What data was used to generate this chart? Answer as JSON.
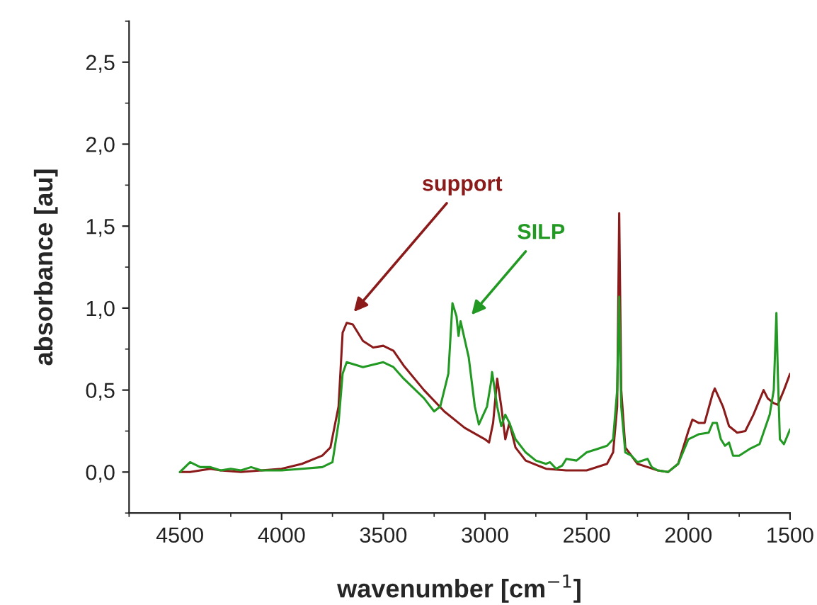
{
  "chart_data": {
    "type": "line",
    "xlabel": "wavenumber [cm$^{−1}$]",
    "ylabel": "absorbance [au]",
    "xlim": [
      4750,
      1500
    ],
    "xticks": [
      4500,
      4000,
      3500,
      3000,
      2500,
      2000,
      1500
    ],
    "ylim": [
      -0.25,
      2.75
    ],
    "yticks": [
      {
        "value": 0,
        "label": "0,0"
      },
      {
        "value": 0.5,
        "label": "0,5"
      },
      {
        "value": 1.0,
        "label": "1,0"
      },
      {
        "value": 1.5,
        "label": "1,5"
      },
      {
        "value": 2.0,
        "label": "2,0"
      },
      {
        "value": 2.5,
        "label": "2,5"
      }
    ],
    "grid": false,
    "legend": false,
    "marker": "none",
    "line_style": "solid",
    "series": [
      {
        "color": "#8b1a1a",
        "x": [
          4500,
          4450,
          4350,
          4300,
          4200,
          4100,
          4000,
          3900,
          3800,
          3760,
          3720,
          3700,
          3680,
          3650,
          3600,
          3550,
          3500,
          3450,
          3400,
          3300,
          3200,
          3100,
          3000,
          2980,
          2960,
          2940,
          2920,
          2900,
          2880,
          2850,
          2800,
          2700,
          2600,
          2500,
          2400,
          2370,
          2350,
          2340,
          2330,
          2310,
          2250,
          2200,
          2150,
          2100,
          2050,
          2000,
          1980,
          1950,
          1920,
          1880,
          1870,
          1830,
          1800,
          1760,
          1720,
          1680,
          1630,
          1610,
          1580,
          1560,
          1530,
          1500
        ],
        "values": [
          0.0,
          0.0,
          0.02,
          0.01,
          0.0,
          0.01,
          0.02,
          0.05,
          0.1,
          0.15,
          0.4,
          0.85,
          0.91,
          0.9,
          0.8,
          0.76,
          0.77,
          0.74,
          0.65,
          0.5,
          0.37,
          0.27,
          0.2,
          0.18,
          0.3,
          0.57,
          0.4,
          0.2,
          0.3,
          0.15,
          0.07,
          0.02,
          0.01,
          0.01,
          0.05,
          0.12,
          0.4,
          1.58,
          0.5,
          0.15,
          0.05,
          0.03,
          0.01,
          0.0,
          0.05,
          0.25,
          0.32,
          0.3,
          0.3,
          0.48,
          0.51,
          0.4,
          0.28,
          0.24,
          0.25,
          0.35,
          0.5,
          0.45,
          0.42,
          0.41,
          0.5,
          0.6
        ]
      },
      {
        "color": "#229922",
        "x": [
          4500,
          4450,
          4400,
          4350,
          4300,
          4250,
          4200,
          4150,
          4100,
          4000,
          3900,
          3800,
          3750,
          3720,
          3700,
          3680,
          3600,
          3500,
          3450,
          3400,
          3300,
          3250,
          3220,
          3180,
          3160,
          3140,
          3130,
          3120,
          3080,
          3050,
          3030,
          2990,
          2970,
          2965,
          2940,
          2920,
          2900,
          2880,
          2850,
          2800,
          2750,
          2700,
          2680,
          2650,
          2620,
          2600,
          2550,
          2500,
          2450,
          2400,
          2370,
          2350,
          2340,
          2330,
          2310,
          2280,
          2250,
          2200,
          2180,
          2150,
          2100,
          2050,
          2000,
          1950,
          1900,
          1880,
          1860,
          1840,
          1820,
          1800,
          1780,
          1750,
          1700,
          1650,
          1600,
          1580,
          1567,
          1560,
          1550,
          1530,
          1500
        ],
        "values": [
          0.0,
          0.06,
          0.03,
          0.03,
          0.01,
          0.02,
          0.01,
          0.03,
          0.01,
          0.01,
          0.02,
          0.03,
          0.06,
          0.3,
          0.6,
          0.67,
          0.64,
          0.67,
          0.64,
          0.57,
          0.45,
          0.37,
          0.4,
          0.6,
          1.03,
          0.95,
          0.83,
          0.92,
          0.7,
          0.4,
          0.29,
          0.4,
          0.55,
          0.61,
          0.4,
          0.28,
          0.35,
          0.3,
          0.2,
          0.12,
          0.07,
          0.05,
          0.06,
          0.02,
          0.04,
          0.08,
          0.07,
          0.12,
          0.14,
          0.16,
          0.2,
          0.5,
          1.07,
          0.4,
          0.12,
          0.1,
          0.06,
          0.08,
          0.03,
          0.01,
          0.0,
          0.05,
          0.2,
          0.23,
          0.24,
          0.3,
          0.3,
          0.2,
          0.16,
          0.18,
          0.1,
          0.1,
          0.14,
          0.17,
          0.35,
          0.5,
          0.97,
          0.6,
          0.2,
          0.17,
          0.26
        ]
      }
    ],
    "annotations": [
      "support",
      "SILP"
    ]
  }
}
